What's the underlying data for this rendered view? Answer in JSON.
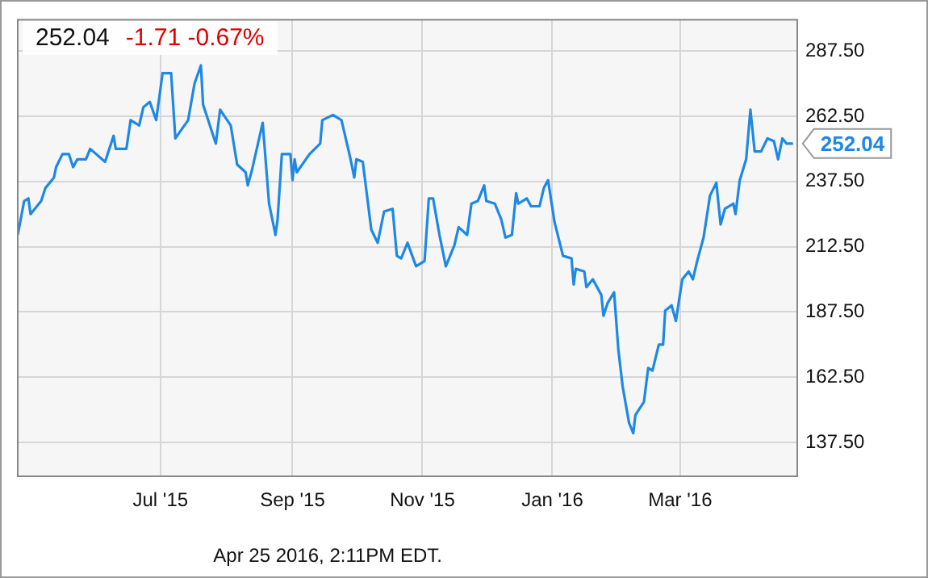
{
  "chart_data": {
    "type": "line",
    "title": "252.04",
    "subtitle": "-1.71  -0.67%",
    "annotations": [
      {
        "text": "252.04",
        "x": "2016-04-23",
        "y": 252.04
      },
      "Apr 25 2016, 2:11PM EDT."
    ],
    "x": [
      "2015-04-25",
      "2015-04-28",
      "2015-04-30",
      "2015-05-01",
      "2015-05-06",
      "2015-05-08",
      "2015-05-12",
      "2015-05-13",
      "2015-05-16",
      "2015-05-19",
      "2015-05-21",
      "2015-05-23",
      "2015-05-27",
      "2015-05-29",
      "2015-06-05",
      "2015-06-09",
      "2015-06-10",
      "2015-06-15",
      "2015-06-17",
      "2015-06-21",
      "2015-06-23",
      "2015-06-26",
      "2015-06-29",
      "2015-07-02",
      "2015-07-06",
      "2015-07-08",
      "2015-07-14",
      "2015-07-17",
      "2015-07-20",
      "2015-07-21",
      "2015-07-27",
      "2015-07-29",
      "2015-08-03",
      "2015-08-06",
      "2015-08-10",
      "2015-08-11",
      "2015-08-13",
      "2015-08-18",
      "2015-08-21",
      "2015-08-24",
      "2015-08-25",
      "2015-08-27",
      "2015-08-31",
      "2015-09-01",
      "2015-09-02",
      "2015-09-03",
      "2015-09-09",
      "2015-09-14",
      "2015-09-15",
      "2015-09-20",
      "2015-09-24",
      "2015-09-28",
      "2015-09-30",
      "2015-10-01",
      "2015-10-04",
      "2015-10-08",
      "2015-10-11",
      "2015-10-14",
      "2015-10-18",
      "2015-10-20",
      "2015-10-22",
      "2015-10-25",
      "2015-10-29",
      "2015-11-02",
      "2015-11-04",
      "2015-11-06",
      "2015-11-09",
      "2015-11-12",
      "2015-11-16",
      "2015-11-18",
      "2015-11-22",
      "2015-11-24",
      "2015-11-27",
      "2015-11-30",
      "2015-12-01",
      "2015-12-05",
      "2015-12-08",
      "2015-12-10",
      "2015-12-13",
      "2015-12-15",
      "2015-12-16",
      "2015-12-20",
      "2015-12-22",
      "2015-12-26",
      "2015-12-28",
      "2015-12-30",
      "2016-01-02",
      "2016-01-06",
      "2016-01-10",
      "2016-01-11",
      "2016-01-12",
      "2016-01-16",
      "2016-01-17",
      "2016-01-20",
      "2016-01-24",
      "2016-01-25",
      "2016-01-27",
      "2016-01-30",
      "2016-02-01",
      "2016-02-03",
      "2016-02-06",
      "2016-02-08",
      "2016-02-09",
      "2016-02-13",
      "2016-02-15",
      "2016-02-17",
      "2016-02-20",
      "2016-02-22",
      "2016-02-23",
      "2016-02-26",
      "2016-02-28",
      "2016-03-02",
      "2016-03-05",
      "2016-03-07",
      "2016-03-09",
      "2016-03-12",
      "2016-03-15",
      "2016-03-18",
      "2016-03-20",
      "2016-03-22",
      "2016-03-26",
      "2016-03-27",
      "2016-03-29",
      "2016-04-01",
      "2016-04-03",
      "2016-04-05",
      "2016-04-08",
      "2016-04-11",
      "2016-04-14",
      "2016-04-16",
      "2016-04-18",
      "2016-04-20",
      "2016-04-23"
    ],
    "series": [
      {
        "color": "#1e88e5",
        "values": [
          217,
          230,
          231,
          225,
          230,
          235,
          239,
          243,
          248,
          248,
          243,
          246,
          246,
          250,
          245,
          255,
          250,
          250,
          261,
          259,
          266,
          268,
          261,
          279,
          279,
          254,
          261,
          275,
          282,
          267,
          252,
          265,
          259,
          244,
          241,
          236,
          242,
          260,
          229,
          217,
          223,
          248,
          248,
          238,
          246,
          241,
          248,
          252,
          261,
          263,
          261,
          247,
          239,
          246,
          245,
          219,
          214,
          226,
          227,
          209,
          208,
          214,
          205,
          207,
          231,
          231,
          217,
          205,
          213,
          220,
          217,
          229,
          230,
          236,
          230,
          229,
          223,
          216,
          217,
          233,
          229,
          231,
          228,
          228,
          235,
          238,
          222,
          209,
          208,
          198,
          204,
          203,
          197,
          200,
          194,
          186,
          191,
          195,
          173,
          159,
          145,
          141,
          148,
          153,
          166,
          165,
          175,
          175,
          188,
          190,
          184,
          200,
          203,
          200,
          207,
          216,
          232,
          237,
          221,
          227,
          229,
          225,
          238,
          246,
          265,
          249,
          249,
          254,
          253,
          246,
          254,
          252,
          252.04
        ]
      }
    ],
    "xlim": [
      "2015-04-25",
      "2016-04-25"
    ],
    "xticks": [
      {
        "value": "2015-07-01",
        "label": "Jul '15"
      },
      {
        "value": "2015-09-01",
        "label": "Sep '15"
      },
      {
        "value": "2015-11-01",
        "label": "Nov '15"
      },
      {
        "value": "2016-01-01",
        "label": "Jan '16"
      },
      {
        "value": "2016-03-01",
        "label": "Mar '16"
      }
    ],
    "ylim": [
      124.5,
      299.5
    ],
    "yticks": [
      {
        "value": 137.5,
        "label": "137.50"
      },
      {
        "value": 162.5,
        "label": "162.50"
      },
      {
        "value": 187.5,
        "label": "187.50"
      },
      {
        "value": 212.5,
        "label": "212.50"
      },
      {
        "value": 237.5,
        "label": "237.50"
      },
      {
        "value": 262.5,
        "label": "262.50"
      },
      {
        "value": 287.5,
        "label": "287.50"
      }
    ],
    "grid": true,
    "legend": false,
    "marker": "none",
    "line_style": "solid"
  }
}
